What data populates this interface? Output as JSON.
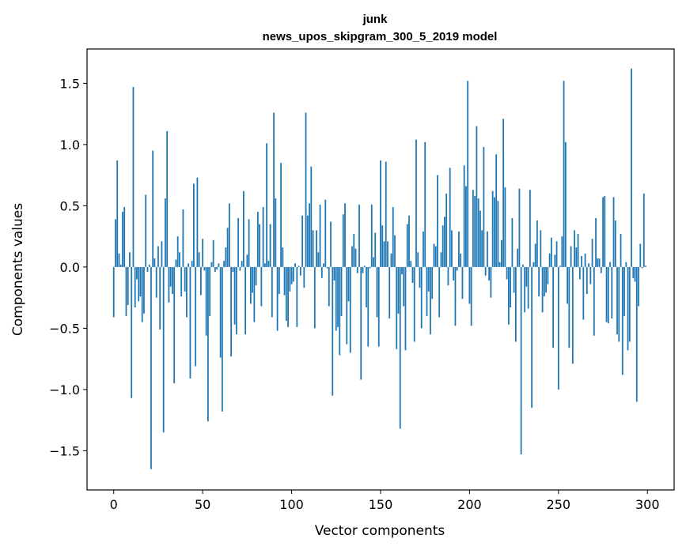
{
  "chart_data": {
    "type": "bar",
    "title": "junk",
    "subtitle": "news_upos_skipgram_300_5_2019 model",
    "xlabel": "Vector components",
    "ylabel": "Components values",
    "xlim": [
      -15,
      315
    ],
    "ylim": [
      -1.82,
      1.78
    ],
    "xticks": [
      0,
      50,
      100,
      150,
      200,
      250,
      300
    ],
    "xtick_labels": [
      "0",
      "50",
      "100",
      "150",
      "200",
      "250",
      "300"
    ],
    "yticks": [
      -1.5,
      -1.0,
      -0.5,
      0.0,
      0.5,
      1.0,
      1.5
    ],
    "ytick_labels": [
      "−1.5",
      "−1.0",
      "−0.5",
      "0.0",
      "0.5",
      "1.0",
      "1.5"
    ],
    "grid": false,
    "bar_color": "#1f77b4",
    "values": [
      -0.41,
      0.39,
      0.87,
      0.11,
      0.02,
      0.45,
      0.49,
      -0.4,
      -0.31,
      0.12,
      -1.07,
      1.47,
      -0.33,
      -0.1,
      -0.28,
      -0.24,
      -0.45,
      -0.38,
      0.59,
      -0.04,
      0.02,
      -1.65,
      0.95,
      0.07,
      -0.25,
      0.17,
      -0.51,
      0.21,
      -1.35,
      0.56,
      1.11,
      -0.29,
      -0.16,
      -0.22,
      -0.95,
      0.06,
      0.25,
      0.12,
      -0.24,
      0.47,
      -0.2,
      -0.41,
      0.03,
      -0.91,
      0.05,
      0.68,
      -0.81,
      0.73,
      0.12,
      -0.23,
      0.23,
      -0.03,
      -0.56,
      -1.26,
      -0.4,
      0.04,
      0.22,
      -0.04,
      -0.02,
      0.03,
      -0.74,
      -1.18,
      0.05,
      0.16,
      0.32,
      0.52,
      -0.73,
      -0.04,
      -0.47,
      -0.55,
      0.4,
      -0.03,
      0.05,
      0.62,
      -0.55,
      0.1,
      0.39,
      -0.3,
      -0.21,
      -0.45,
      -0.15,
      0.45,
      0.35,
      -0.32,
      0.49,
      0.03,
      1.01,
      0.05,
      0.35,
      -0.41,
      1.26,
      0.56,
      -0.52,
      -0.22,
      0.85,
      0.16,
      -0.23,
      -0.44,
      -0.49,
      -0.2,
      -0.14,
      -0.12,
      0.03,
      -0.49,
      0.01,
      -0.07,
      0.42,
      -0.17,
      1.26,
      0.42,
      0.52,
      0.82,
      0.3,
      -0.5,
      0.3,
      0.12,
      0.51,
      -0.09,
      0.03,
      0.55,
      -0.01,
      -0.32,
      0.37,
      -1.05,
      -0.11,
      -0.52,
      -0.49,
      -0.72,
      -0.4,
      0.43,
      0.52,
      -0.63,
      -0.28,
      -0.7,
      0.17,
      0.27,
      0.15,
      -0.05,
      0.51,
      -0.92,
      -0.05,
      0.01,
      -0.33,
      -0.65,
      -0.01,
      0.51,
      0.08,
      0.28,
      -0.41,
      -0.65,
      0.87,
      0.34,
      0.21,
      0.86,
      0.21,
      -0.42,
      0.11,
      0.49,
      0.26,
      -0.67,
      -0.38,
      -1.32,
      -0.06,
      -0.32,
      -0.68,
      0.35,
      0.42,
      0.05,
      -0.13,
      -0.61,
      1.04,
      0.12,
      -0.17,
      -0.5,
      0.29,
      1.02,
      -0.4,
      -0.2,
      -0.55,
      -0.26,
      0.19,
      0.17,
      0.75,
      -0.41,
      0.12,
      0.34,
      0.41,
      0.6,
      -0.15,
      0.81,
      0.3,
      -0.11,
      -0.48,
      -0.03,
      0.29,
      0.11,
      -0.26,
      0.83,
      0.66,
      1.52,
      -0.3,
      -0.48,
      0.63,
      0.58,
      1.15,
      0.56,
      0.46,
      0.3,
      0.98,
      -0.07,
      0.29,
      -0.11,
      -0.25,
      0.62,
      0.57,
      0.92,
      0.54,
      0.04,
      0.22,
      1.21,
      0.65,
      -0.1,
      -0.47,
      -0.33,
      0.4,
      -0.21,
      -0.61,
      0.15,
      0.64,
      -1.53,
      0.02,
      -0.37,
      -0.16,
      -0.34,
      0.63,
      -1.15,
      0.04,
      0.19,
      0.38,
      -0.24,
      0.3,
      -0.37,
      -0.24,
      -0.21,
      -0.14,
      0.11,
      0.24,
      -0.66,
      0.1,
      0.21,
      -1.0,
      0.01,
      0.25,
      1.52,
      1.02,
      -0.3,
      -0.66,
      0.17,
      -0.79,
      0.3,
      0.16,
      0.27,
      -0.1,
      0.09,
      -0.43,
      0.11,
      -0.22,
      0.03,
      -0.14,
      0.23,
      -0.56,
      0.4,
      0.07,
      0.07,
      -0.05,
      0.57,
      0.58,
      -0.45,
      -0.46,
      0.04,
      -0.42,
      0.57,
      0.38,
      -0.55,
      -0.61,
      0.27,
      -0.88,
      -0.4,
      0.04,
      -0.68,
      -0.61,
      1.62,
      -0.09,
      -0.12,
      -1.1,
      -0.32,
      0.19,
      -0.01,
      0.6,
      0.01
    ]
  }
}
